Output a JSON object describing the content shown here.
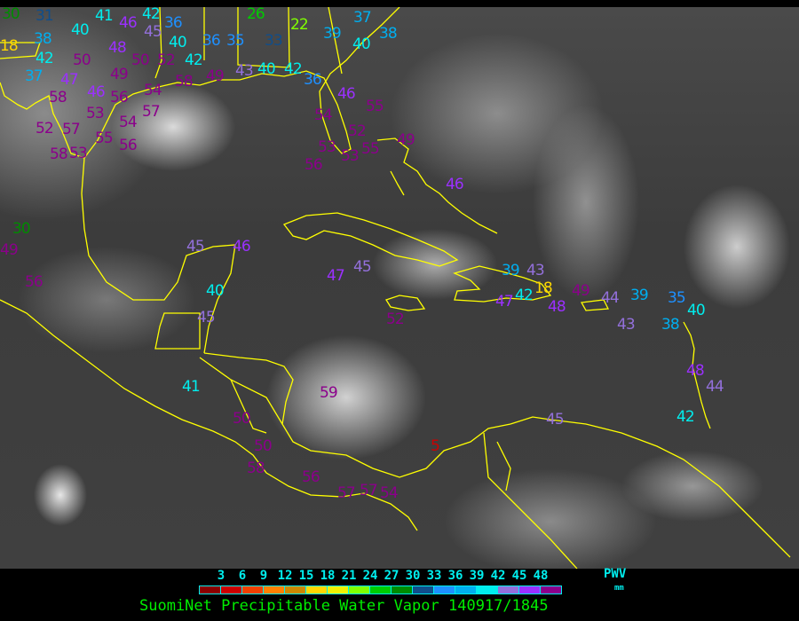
{
  "title": "SuomiNet Precipitable Water Vapor 140917/1845",
  "legend": {
    "unit_label": "PWV",
    "unit": "mm",
    "ticks": [
      "3",
      "6",
      "9",
      "12",
      "15",
      "18",
      "21",
      "24",
      "27",
      "30",
      "33",
      "36",
      "39",
      "42",
      "45",
      "48"
    ],
    "colors": [
      "#8b0000",
      "#cc0000",
      "#f04000",
      "#ff8000",
      "#cc8800",
      "#ffd700",
      "#f0f000",
      "#80ff00",
      "#00cc00",
      "#008b00",
      "#104e8b",
      "#1e90ff",
      "#00aeef",
      "#00eeee",
      "#9370db",
      "#9b30ff",
      "#8b008b"
    ]
  },
  "map": {
    "coastline_color": "#ffff00",
    "stations": [
      "30",
      "31",
      "38",
      "40",
      "41",
      "46",
      "48",
      "45",
      "42",
      "36",
      "50",
      "50",
      "40",
      "36",
      "42",
      "47",
      "49",
      "54",
      "52",
      "37",
      "46",
      "56",
      "58",
      "49",
      "42",
      "35",
      "33",
      "26",
      "22",
      "39",
      "40",
      "38",
      "37",
      "43",
      "40",
      "42",
      "36",
      "46",
      "55",
      "54",
      "52",
      "53",
      "53",
      "56",
      "55",
      "49",
      "58",
      "53",
      "57",
      "56",
      "54",
      "57",
      "52",
      "55",
      "58",
      "53",
      "46",
      "30",
      "49",
      "56",
      "45",
      "46",
      "40",
      "45",
      "47",
      "45",
      "52",
      "39",
      "43",
      "42",
      "18",
      "48",
      "47",
      "49",
      "44",
      "39",
      "43",
      "35",
      "40",
      "38",
      "48",
      "44",
      "42",
      "45",
      "59",
      "41",
      "50",
      "50",
      "58",
      "56",
      "57",
      "57",
      "54",
      "5",
      "18"
    ]
  }
}
